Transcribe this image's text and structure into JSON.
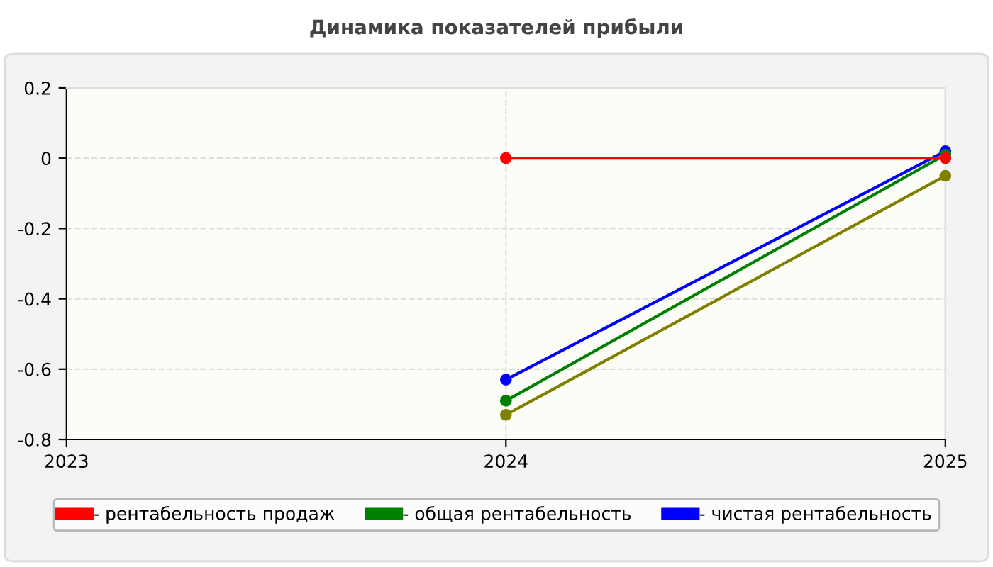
{
  "chart_data": {
    "type": "line",
    "title": "Динамика показателей прибыли",
    "x": [
      2024,
      2025
    ],
    "xlim": [
      2023,
      2025
    ],
    "xticks": [
      2023,
      2024,
      2025
    ],
    "ylim": [
      -0.8,
      0.2
    ],
    "yticks": [
      -0.8,
      -0.6,
      -0.4,
      -0.2,
      0,
      0.2
    ],
    "grid": true,
    "legend": "bottom",
    "marker": "circle",
    "line_style": "solid",
    "series": [
      {
        "name": "- рентабельность продаж",
        "color": "#ff0000",
        "values": [
          0,
          0
        ]
      },
      {
        "name": "- общая рентабельность",
        "color": "#008000",
        "values": [
          -0.69,
          0.01
        ]
      },
      {
        "name": "- чистая рентабельность",
        "color": "#0000ff",
        "values": [
          -0.63,
          0.02
        ]
      },
      {
        "color": "#808000",
        "values": [
          -0.73,
          -0.05
        ]
      }
    ]
  }
}
